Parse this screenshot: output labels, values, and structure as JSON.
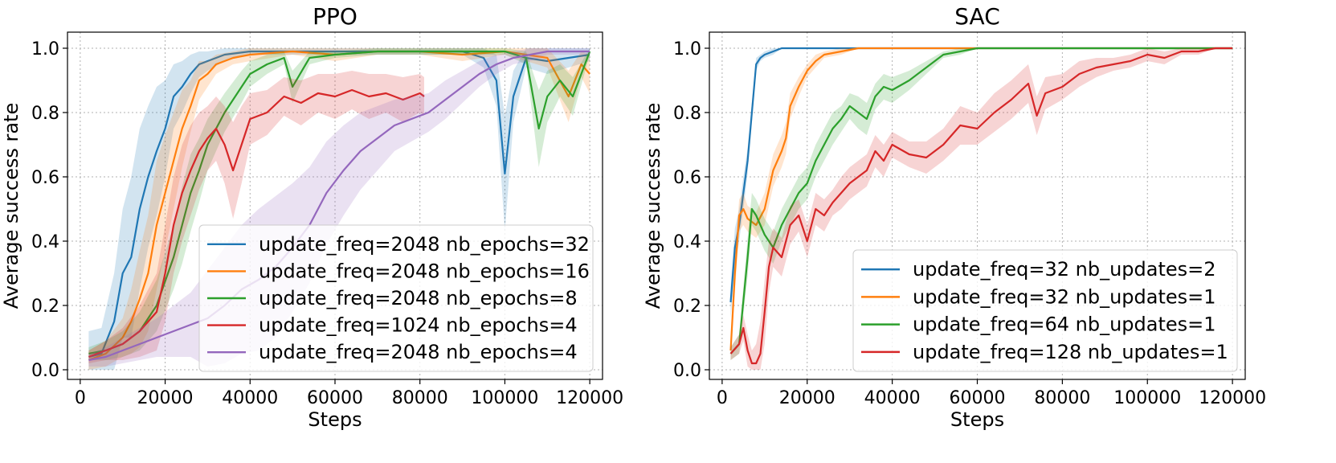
{
  "chart_data": [
    {
      "type": "line",
      "title": "PPO",
      "xlabel": "Steps",
      "ylabel": "Average success rate",
      "xlim": [
        -3000,
        123000
      ],
      "ylim": [
        -0.03,
        1.05
      ],
      "xticks": [
        0,
        20000,
        40000,
        60000,
        80000,
        100000,
        120000
      ],
      "xtick_labels": [
        "0",
        "20000",
        "40000",
        "60000",
        "80000",
        "100000",
        "120000"
      ],
      "yticks": [
        0.0,
        0.2,
        0.4,
        0.6,
        0.8,
        1.0
      ],
      "ytick_labels": [
        "0.0",
        "0.2",
        "0.4",
        "0.6",
        "0.8",
        "1.0"
      ],
      "grid": true,
      "legend_position": "lower-right",
      "series": [
        {
          "name": "update_freq=2048 nb_epochs=32",
          "color": "#1f77b4",
          "x": [
            2000,
            5000,
            8000,
            10000,
            12000,
            14000,
            16000,
            18000,
            20000,
            22000,
            24000,
            26000,
            28000,
            30000,
            34000,
            40000,
            50000,
            60000,
            70000,
            80000,
            90000,
            95000,
            98000,
            100000,
            102000,
            105000,
            110000,
            115000,
            120000
          ],
          "y": [
            0.04,
            0.05,
            0.15,
            0.3,
            0.35,
            0.5,
            0.6,
            0.68,
            0.75,
            0.85,
            0.88,
            0.92,
            0.95,
            0.96,
            0.98,
            0.99,
            0.99,
            0.99,
            0.99,
            0.99,
            0.99,
            0.97,
            0.9,
            0.61,
            0.85,
            0.97,
            0.96,
            0.97,
            0.98
          ],
          "band": [
            0.08,
            0.08,
            0.15,
            0.2,
            0.25,
            0.25,
            0.22,
            0.2,
            0.15,
            0.1,
            0.08,
            0.06,
            0.04,
            0.03,
            0.02,
            0.01,
            0.01,
            0.01,
            0.01,
            0.01,
            0.01,
            0.03,
            0.08,
            0.18,
            0.08,
            0.03,
            0.04,
            0.03,
            0.02
          ]
        },
        {
          "name": "update_freq=2048 nb_epochs=16",
          "color": "#ff7f0e",
          "x": [
            2000,
            6000,
            10000,
            12000,
            14000,
            16000,
            18000,
            20000,
            22000,
            24000,
            26000,
            28000,
            30000,
            32000,
            36000,
            40000,
            50000,
            60000,
            70000,
            80000,
            90000,
            100000,
            110000,
            115000,
            118000,
            120000
          ],
          "y": [
            0.03,
            0.05,
            0.1,
            0.15,
            0.22,
            0.3,
            0.45,
            0.55,
            0.65,
            0.75,
            0.82,
            0.9,
            0.92,
            0.95,
            0.97,
            0.98,
            0.99,
            0.98,
            0.99,
            0.99,
            0.98,
            0.99,
            0.97,
            0.85,
            0.95,
            0.92
          ],
          "band": [
            0.03,
            0.04,
            0.06,
            0.1,
            0.15,
            0.18,
            0.2,
            0.18,
            0.15,
            0.12,
            0.08,
            0.06,
            0.04,
            0.03,
            0.02,
            0.02,
            0.01,
            0.02,
            0.01,
            0.01,
            0.02,
            0.01,
            0.03,
            0.08,
            0.04,
            0.06
          ]
        },
        {
          "name": "update_freq=2048 nb_epochs=8",
          "color": "#2ca02c",
          "x": [
            2000,
            6000,
            10000,
            14000,
            18000,
            22000,
            24000,
            26000,
            28000,
            30000,
            32000,
            34000,
            38000,
            40000,
            44000,
            48000,
            50000,
            54000,
            60000,
            70000,
            80000,
            90000,
            100000,
            105000,
            108000,
            110000,
            113000,
            116000,
            120000
          ],
          "y": [
            0.05,
            0.06,
            0.08,
            0.12,
            0.2,
            0.35,
            0.45,
            0.55,
            0.62,
            0.7,
            0.75,
            0.8,
            0.88,
            0.92,
            0.95,
            0.97,
            0.88,
            0.97,
            0.98,
            0.99,
            0.99,
            0.99,
            0.99,
            0.97,
            0.75,
            0.85,
            0.9,
            0.85,
            0.99
          ],
          "band": [
            0.02,
            0.03,
            0.04,
            0.06,
            0.08,
            0.1,
            0.12,
            0.12,
            0.1,
            0.08,
            0.07,
            0.06,
            0.05,
            0.04,
            0.03,
            0.02,
            0.05,
            0.02,
            0.01,
            0.01,
            0.01,
            0.01,
            0.01,
            0.02,
            0.12,
            0.08,
            0.05,
            0.06,
            0.01
          ]
        },
        {
          "name": "update_freq=1024 nb_epochs=4",
          "color": "#d62728",
          "x": [
            2000,
            6000,
            10000,
            14000,
            18000,
            20000,
            22000,
            24000,
            26000,
            28000,
            30000,
            32000,
            34000,
            36000,
            38000,
            40000,
            44000,
            48000,
            52000,
            56000,
            60000,
            64000,
            68000,
            72000,
            76000,
            80000,
            81000
          ],
          "y": [
            0.04,
            0.06,
            0.08,
            0.12,
            0.18,
            0.3,
            0.45,
            0.55,
            0.62,
            0.68,
            0.72,
            0.75,
            0.7,
            0.62,
            0.7,
            0.78,
            0.8,
            0.85,
            0.83,
            0.86,
            0.85,
            0.87,
            0.85,
            0.86,
            0.84,
            0.86,
            0.85
          ],
          "band": [
            0.02,
            0.03,
            0.05,
            0.08,
            0.12,
            0.15,
            0.15,
            0.15,
            0.14,
            0.12,
            0.1,
            0.1,
            0.12,
            0.15,
            0.12,
            0.08,
            0.07,
            0.06,
            0.07,
            0.06,
            0.07,
            0.06,
            0.07,
            0.06,
            0.07,
            0.06,
            0.06
          ]
        },
        {
          "name": "update_freq=2048 nb_epochs=4",
          "color": "#9467bd",
          "x": [
            2000,
            6000,
            10000,
            14000,
            18000,
            22000,
            26000,
            30000,
            34000,
            38000,
            42000,
            46000,
            50000,
            54000,
            58000,
            62000,
            66000,
            70000,
            74000,
            78000,
            82000,
            86000,
            90000,
            94000,
            98000,
            102000,
            106000,
            110000,
            114000,
            118000,
            120000
          ],
          "y": [
            0.03,
            0.04,
            0.06,
            0.08,
            0.1,
            0.12,
            0.14,
            0.16,
            0.2,
            0.25,
            0.28,
            0.32,
            0.38,
            0.45,
            0.55,
            0.62,
            0.68,
            0.72,
            0.76,
            0.78,
            0.8,
            0.84,
            0.88,
            0.92,
            0.95,
            0.97,
            0.98,
            0.99,
            0.99,
            0.99,
            0.99
          ],
          "band": [
            0.02,
            0.03,
            0.04,
            0.05,
            0.06,
            0.08,
            0.1,
            0.15,
            0.18,
            0.2,
            0.22,
            0.22,
            0.2,
            0.18,
            0.16,
            0.14,
            0.12,
            0.1,
            0.08,
            0.07,
            0.06,
            0.06,
            0.05,
            0.04,
            0.03,
            0.02,
            0.02,
            0.01,
            0.01,
            0.01,
            0.01
          ]
        }
      ]
    },
    {
      "type": "line",
      "title": "SAC",
      "xlabel": "Steps",
      "ylabel": "Average success rate",
      "xlim": [
        -3000,
        123000
      ],
      "ylim": [
        -0.03,
        1.05
      ],
      "xticks": [
        0,
        20000,
        40000,
        60000,
        80000,
        100000,
        120000
      ],
      "xtick_labels": [
        "0",
        "20000",
        "40000",
        "60000",
        "80000",
        "100000",
        "120000"
      ],
      "yticks": [
        0.0,
        0.2,
        0.4,
        0.6,
        0.8,
        1.0
      ],
      "ytick_labels": [
        "0.0",
        "0.2",
        "0.4",
        "0.6",
        "0.8",
        "1.0"
      ],
      "grid": true,
      "legend_position": "lower-right",
      "series": [
        {
          "name": "update_freq=32 nb_updates=2",
          "color": "#1f77b4",
          "x": [
            2000,
            3000,
            4000,
            5000,
            6000,
            7000,
            8000,
            9000,
            10000,
            12000,
            14000,
            20000,
            40000,
            60000,
            80000,
            100000,
            120000
          ],
          "y": [
            0.21,
            0.38,
            0.45,
            0.55,
            0.65,
            0.8,
            0.95,
            0.97,
            0.98,
            0.99,
            1.0,
            1.0,
            1.0,
            1.0,
            1.0,
            1.0,
            1.0
          ],
          "band": [
            0.05,
            0.06,
            0.05,
            0.05,
            0.04,
            0.03,
            0.02,
            0.01,
            0.01,
            0.01,
            0.0,
            0.0,
            0.0,
            0.0,
            0.0,
            0.0,
            0.0
          ]
        },
        {
          "name": "update_freq=32 nb_updates=1",
          "color": "#ff7f0e",
          "x": [
            2000,
            3000,
            4000,
            5000,
            6000,
            8000,
            10000,
            12000,
            14000,
            15000,
            16000,
            18000,
            20000,
            22000,
            24000,
            28000,
            32000,
            40000,
            60000,
            80000,
            100000,
            120000
          ],
          "y": [
            0.06,
            0.3,
            0.48,
            0.5,
            0.47,
            0.45,
            0.5,
            0.62,
            0.68,
            0.72,
            0.82,
            0.88,
            0.93,
            0.96,
            0.98,
            0.99,
            1.0,
            1.0,
            1.0,
            1.0,
            1.0,
            1.0
          ],
          "band": [
            0.02,
            0.06,
            0.05,
            0.05,
            0.04,
            0.04,
            0.05,
            0.05,
            0.05,
            0.05,
            0.04,
            0.03,
            0.02,
            0.02,
            0.01,
            0.01,
            0.0,
            0.0,
            0.0,
            0.0,
            0.0,
            0.0
          ]
        },
        {
          "name": "update_freq=64 nb_updates=1",
          "color": "#2ca02c",
          "x": [
            2000,
            4000,
            6000,
            7000,
            8000,
            10000,
            12000,
            14000,
            16000,
            18000,
            20000,
            22000,
            24000,
            26000,
            28000,
            30000,
            32000,
            34000,
            36000,
            38000,
            40000,
            44000,
            48000,
            52000,
            56000,
            60000,
            80000,
            100000,
            120000
          ],
          "y": [
            0.05,
            0.08,
            0.35,
            0.5,
            0.48,
            0.42,
            0.38,
            0.45,
            0.5,
            0.55,
            0.58,
            0.65,
            0.7,
            0.75,
            0.78,
            0.82,
            0.8,
            0.78,
            0.85,
            0.88,
            0.87,
            0.9,
            0.94,
            0.98,
            0.99,
            1.0,
            1.0,
            1.0,
            1.0
          ],
          "band": [
            0.02,
            0.03,
            0.06,
            0.05,
            0.05,
            0.05,
            0.05,
            0.05,
            0.05,
            0.05,
            0.05,
            0.05,
            0.05,
            0.05,
            0.04,
            0.04,
            0.05,
            0.05,
            0.04,
            0.04,
            0.04,
            0.03,
            0.02,
            0.01,
            0.01,
            0.0,
            0.0,
            0.0,
            0.0
          ]
        },
        {
          "name": "update_freq=128 nb_updates=1",
          "color": "#d62728",
          "x": [
            2000,
            4000,
            5000,
            6000,
            7000,
            8000,
            9000,
            10000,
            11000,
            12000,
            14000,
            16000,
            18000,
            20000,
            22000,
            24000,
            26000,
            28000,
            30000,
            32000,
            34000,
            36000,
            38000,
            40000,
            44000,
            48000,
            52000,
            56000,
            60000,
            64000,
            68000,
            72000,
            74000,
            76000,
            80000,
            84000,
            88000,
            92000,
            96000,
            100000,
            104000,
            108000,
            112000,
            116000,
            120000
          ],
          "y": [
            0.05,
            0.08,
            0.13,
            0.06,
            0.02,
            0.02,
            0.05,
            0.18,
            0.32,
            0.38,
            0.35,
            0.45,
            0.48,
            0.4,
            0.5,
            0.48,
            0.52,
            0.55,
            0.58,
            0.6,
            0.62,
            0.68,
            0.65,
            0.7,
            0.67,
            0.66,
            0.7,
            0.76,
            0.75,
            0.8,
            0.84,
            0.89,
            0.79,
            0.86,
            0.88,
            0.92,
            0.94,
            0.95,
            0.96,
            0.98,
            0.97,
            0.99,
            0.99,
            1.0,
            1.0
          ],
          "band": [
            0.02,
            0.03,
            0.04,
            0.05,
            0.04,
            0.06,
            0.1,
            0.1,
            0.08,
            0.06,
            0.06,
            0.06,
            0.05,
            0.05,
            0.05,
            0.05,
            0.04,
            0.05,
            0.05,
            0.05,
            0.05,
            0.05,
            0.05,
            0.04,
            0.04,
            0.05,
            0.05,
            0.06,
            0.05,
            0.06,
            0.06,
            0.06,
            0.06,
            0.05,
            0.04,
            0.04,
            0.03,
            0.02,
            0.02,
            0.02,
            0.02,
            0.01,
            0.01,
            0.0,
            0.0
          ]
        }
      ]
    }
  ]
}
